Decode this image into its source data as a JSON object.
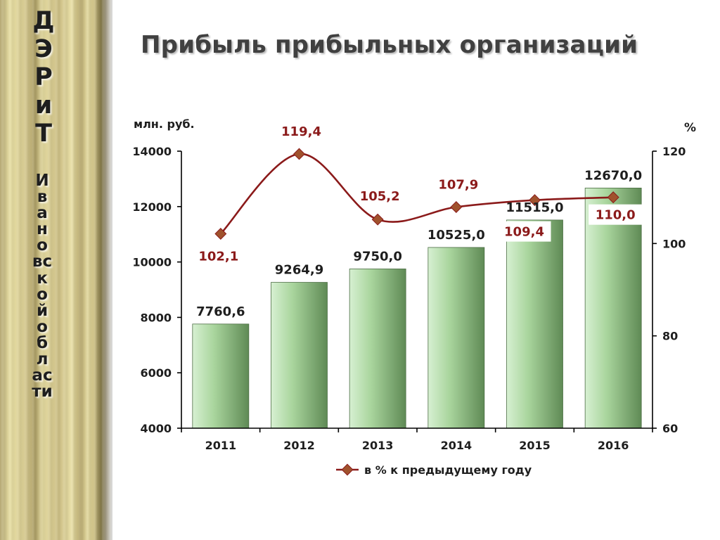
{
  "side_panel": {
    "title_line1": "ДЭРиТ",
    "title_line2": "Ивановской области"
  },
  "title": "Прибыль прибыльных организаций",
  "colors": {
    "bar_light": "#d7f0d2",
    "bar_mid": "#a9d59d",
    "bar_dark": "#5f8a55",
    "line": "#8b1a1a",
    "marker": "#a0522d",
    "axis": "#000000",
    "text": "#1e1e1e"
  },
  "chart_data": {
    "type": "bar",
    "categories": [
      "2011",
      "2012",
      "2013",
      "2014",
      "2015",
      "2016"
    ],
    "series": [
      {
        "values": [
          7760.6,
          9264.9,
          9750.0,
          10525.0,
          11515.0,
          12670.0
        ],
        "labels": [
          "7760,6",
          "9264,9",
          "9750,0",
          "10525,0",
          "11515,0",
          "12670,0"
        ],
        "axis": "left"
      },
      {
        "name": "в % к предыдущему году",
        "type": "line",
        "values": [
          102.1,
          119.4,
          105.2,
          107.9,
          109.4,
          110.0
        ],
        "labels": [
          "102,1",
          "119,4",
          "105,2",
          "107,9",
          "109,4",
          "110,0"
        ],
        "axis": "right"
      }
    ],
    "ylabel": "млн. руб.",
    "y2label": "%",
    "ylim": [
      4000,
      14000
    ],
    "yticks": [
      4000,
      6000,
      8000,
      10000,
      12000,
      14000
    ],
    "y2lim": [
      60,
      120
    ],
    "y2ticks": [
      60,
      80,
      100,
      120
    ],
    "grid": false,
    "legend_position": "bottom"
  }
}
